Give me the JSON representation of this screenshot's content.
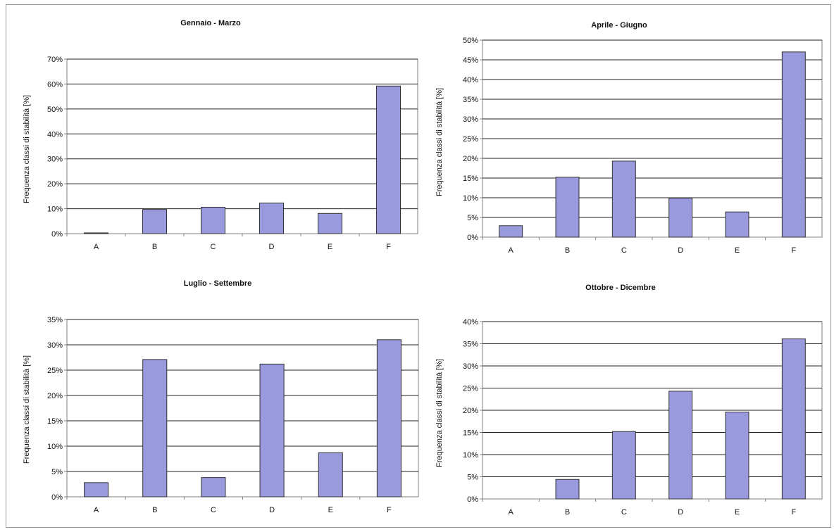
{
  "figure": {
    "charts": [
      {
        "type": "bar",
        "title": "Gennaio - Marzo",
        "ylabel": "Frequenza classi di stabilità [%]",
        "categories": [
          "A",
          "B",
          "C",
          "D",
          "E",
          "F"
        ],
        "values": [
          0.3,
          9.7,
          10.6,
          12.3,
          8.1,
          59.2
        ],
        "ylim": [
          0,
          70
        ],
        "yticks": [
          "0%",
          "10%",
          "20%",
          "30%",
          "40%",
          "50%",
          "60%",
          "70%"
        ],
        "grid": true
      },
      {
        "type": "bar",
        "title": "Aprile - Giugno",
        "ylabel": "Frequenza classi di stabilità [%]",
        "categories": [
          "A",
          "B",
          "C",
          "D",
          "E",
          "F"
        ],
        "values": [
          2.9,
          15.2,
          19.3,
          9.9,
          6.4,
          47.0
        ],
        "ylim": [
          0,
          50
        ],
        "yticks": [
          "0%",
          "5%",
          "10%",
          "15%",
          "20%",
          "25%",
          "30%",
          "35%",
          "40%",
          "45%",
          "50%"
        ],
        "grid": true
      },
      {
        "type": "bar",
        "title": "Luglio - Settembre",
        "ylabel": "Frequenza classi di stabilità [%]",
        "categories": [
          "A",
          "B",
          "C",
          "D",
          "E",
          "F"
        ],
        "values": [
          2.8,
          27.1,
          3.8,
          26.2,
          8.7,
          31.0
        ],
        "ylim": [
          0,
          35
        ],
        "yticks": [
          "0%",
          "5%",
          "10%",
          "15%",
          "20%",
          "25%",
          "30%",
          "35%"
        ],
        "grid": true
      },
      {
        "type": "bar",
        "title": "Ottobre - Dicembre",
        "ylabel": "Frequenza classi di stabilità [%]",
        "categories": [
          "A",
          "B",
          "C",
          "D",
          "E",
          "F"
        ],
        "values": [
          0.0,
          4.4,
          15.2,
          24.3,
          19.6,
          36.1
        ],
        "ylim": [
          0,
          40
        ],
        "yticks": [
          "0%",
          "5%",
          "10%",
          "15%",
          "20%",
          "25%",
          "30%",
          "35%",
          "40%"
        ],
        "grid": true
      }
    ],
    "colors": {
      "bar_fill": "#9999dd",
      "bar_stroke": "#333333",
      "grid": "#222222",
      "axis": "#808080"
    }
  },
  "chart_data": [
    {
      "type": "bar",
      "title": "Gennaio - Marzo",
      "ylabel": "Frequenza classi di stabilità [%]",
      "categories": [
        "A",
        "B",
        "C",
        "D",
        "E",
        "F"
      ],
      "values": [
        0.3,
        9.7,
        10.6,
        12.3,
        8.1,
        59.2
      ],
      "ylim": [
        0,
        70
      ]
    },
    {
      "type": "bar",
      "title": "Aprile - Giugno",
      "ylabel": "Frequenza classi di stabilità [%]",
      "categories": [
        "A",
        "B",
        "C",
        "D",
        "E",
        "F"
      ],
      "values": [
        2.9,
        15.2,
        19.3,
        9.9,
        6.4,
        47.0
      ],
      "ylim": [
        0,
        50
      ]
    },
    {
      "type": "bar",
      "title": "Luglio - Settembre",
      "ylabel": "Frequenza classi di stabilità [%]",
      "categories": [
        "A",
        "B",
        "C",
        "D",
        "E",
        "F"
      ],
      "values": [
        2.8,
        27.1,
        3.8,
        26.2,
        8.7,
        31.0
      ],
      "ylim": [
        0,
        35
      ]
    },
    {
      "type": "bar",
      "title": "Ottobre - Dicembre",
      "ylabel": "Frequenza classi di stabilità [%]",
      "categories": [
        "A",
        "B",
        "C",
        "D",
        "E",
        "F"
      ],
      "values": [
        0.0,
        4.4,
        15.2,
        24.3,
        19.6,
        36.1
      ],
      "ylim": [
        0,
        40
      ]
    }
  ]
}
